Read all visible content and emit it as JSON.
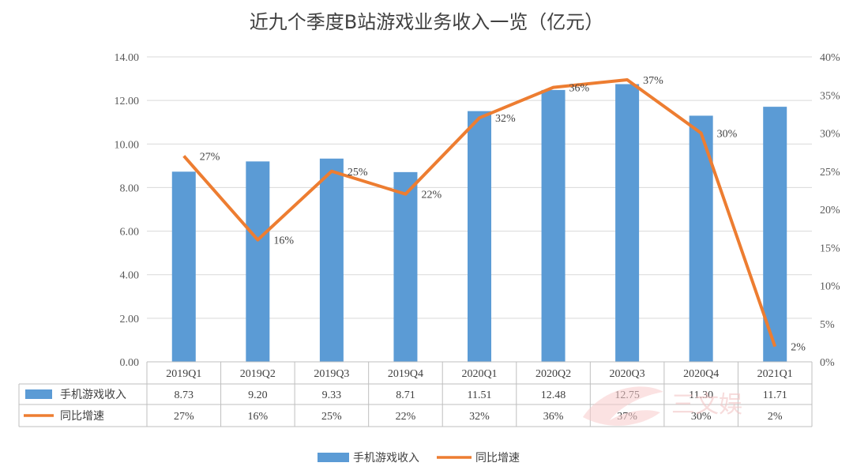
{
  "chart_data": {
    "type": "bar",
    "title": "近九个季度B站游戏业务收入一览（亿元）",
    "categories": [
      "2019Q1",
      "2019Q2",
      "2019Q3",
      "2019Q4",
      "2020Q1",
      "2020Q2",
      "2020Q3",
      "2020Q4",
      "2021Q1"
    ],
    "series": [
      {
        "name": "手机游戏收入",
        "type": "bar",
        "axis": "left",
        "values": [
          8.73,
          9.2,
          9.33,
          8.71,
          11.51,
          12.48,
          12.75,
          11.3,
          11.71
        ],
        "labels": [
          "8.73",
          "9.20",
          "9.33",
          "8.71",
          "11.51",
          "12.48",
          "12.75",
          "11.30",
          "11.71"
        ],
        "color": "#5b9bd5"
      },
      {
        "name": "同比增速",
        "type": "line",
        "axis": "right",
        "values": [
          27,
          16,
          25,
          22,
          32,
          36,
          37,
          30,
          2
        ],
        "labels": [
          "27%",
          "16%",
          "25%",
          "22%",
          "32%",
          "36%",
          "37%",
          "30%",
          "2%"
        ],
        "color": "#ed7d31"
      }
    ],
    "y_left": {
      "ylim": [
        0,
        14
      ],
      "ticks": [
        "0.00",
        "2.00",
        "4.00",
        "6.00",
        "8.00",
        "10.00",
        "12.00",
        "14.00"
      ]
    },
    "y_right": {
      "ylim": [
        0,
        40
      ],
      "ticks": [
        "0%",
        "5%",
        "10%",
        "15%",
        "20%",
        "25%",
        "30%",
        "35%",
        "40%"
      ]
    },
    "legend": {
      "position": "bottom",
      "items": [
        "手机游戏收入",
        "同比增速"
      ]
    },
    "data_table": true,
    "grid": true
  },
  "watermark": {
    "text": "三文娱"
  }
}
